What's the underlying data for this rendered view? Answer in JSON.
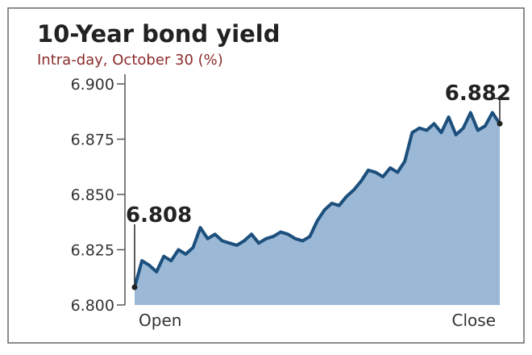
{
  "chart_data": {
    "type": "area",
    "title": "10-Year bond yield",
    "subtitle": "Intra-day, October 30 (%)",
    "categories": [
      "Open",
      null,
      null,
      null,
      null,
      null,
      null,
      null,
      null,
      null,
      null,
      null,
      null,
      null,
      null,
      null,
      null,
      null,
      null,
      null,
      null,
      null,
      null,
      null,
      null,
      null,
      null,
      null,
      null,
      null,
      null,
      null,
      null,
      null,
      null,
      null,
      null,
      null,
      null,
      null,
      null,
      null,
      null,
      null,
      null,
      null,
      null,
      null,
      null,
      null,
      "Close"
    ],
    "values": [
      6.808,
      6.82,
      6.818,
      6.815,
      6.822,
      6.82,
      6.825,
      6.823,
      6.826,
      6.835,
      6.83,
      6.832,
      6.829,
      6.828,
      6.827,
      6.829,
      6.832,
      6.828,
      6.83,
      6.831,
      6.833,
      6.832,
      6.83,
      6.829,
      6.831,
      6.838,
      6.843,
      6.846,
      6.845,
      6.849,
      6.852,
      6.856,
      6.861,
      6.86,
      6.858,
      6.862,
      6.86,
      6.865,
      6.878,
      6.88,
      6.879,
      6.882,
      6.878,
      6.885,
      6.877,
      6.88,
      6.887,
      6.879,
      6.881,
      6.887,
      6.882
    ],
    "value_labels": [
      "6.808",
      null,
      null,
      null,
      null,
      null,
      null,
      null,
      null,
      null,
      null,
      null,
      null,
      null,
      null,
      null,
      null,
      null,
      null,
      null,
      null,
      null,
      null,
      null,
      null,
      null,
      null,
      null,
      null,
      null,
      null,
      null,
      null,
      null,
      null,
      null,
      null,
      null,
      null,
      null,
      null,
      null,
      null,
      null,
      null,
      null,
      null,
      null,
      null,
      null,
      "6.882"
    ],
    "line_color": "#1c4f7c",
    "color": "#9bb8d7",
    "ylim": [
      6.8,
      6.9
    ],
    "yticks": [
      {
        "value": 6.8,
        "label": "6.800"
      },
      {
        "value": 6.825,
        "label": "6.825"
      },
      {
        "value": 6.85,
        "label": "6.850"
      },
      {
        "value": 6.875,
        "label": "6.875"
      },
      {
        "value": 6.9,
        "label": "6.900"
      }
    ]
  }
}
